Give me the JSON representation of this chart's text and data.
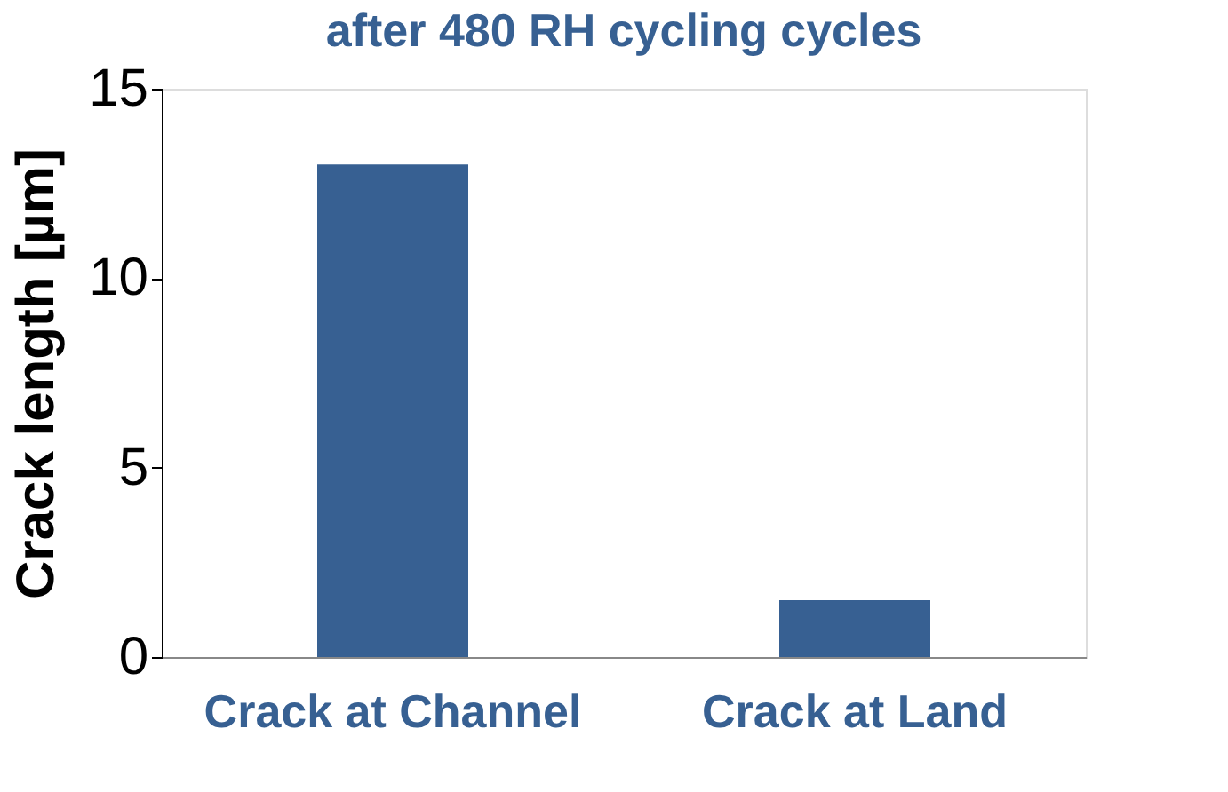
{
  "chart_data": {
    "type": "bar",
    "title": "after 480 RH cycling cycles",
    "ylabel": "Crack length [µm]",
    "categories": [
      "Crack at Channel",
      "Crack at Land"
    ],
    "values": [
      13,
      1.5
    ],
    "color": "#376092",
    "ylim": [
      0,
      15
    ],
    "yticks": [
      0,
      5,
      10,
      15
    ],
    "grid": false
  }
}
